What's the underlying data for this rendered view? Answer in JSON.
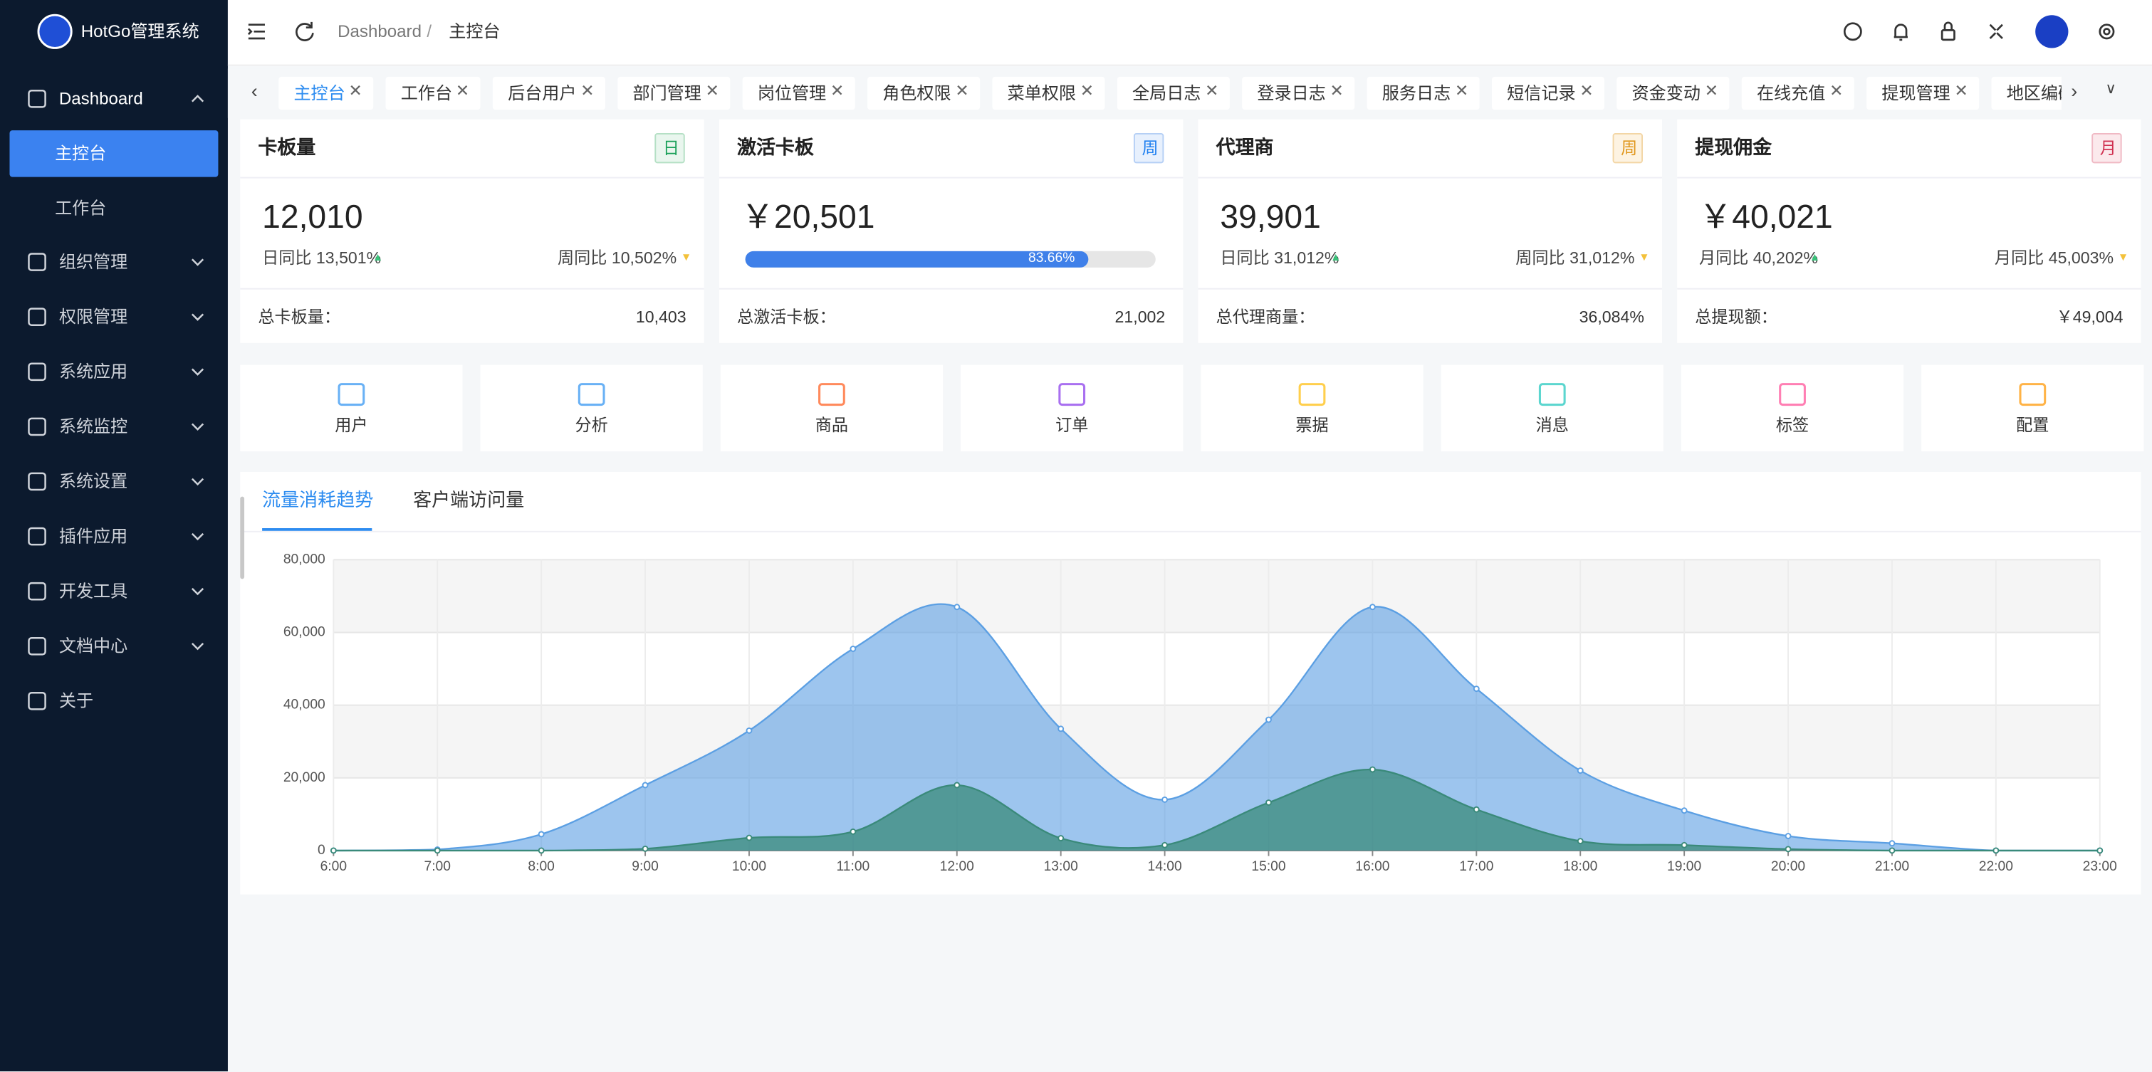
{
  "sidebar": {
    "title": "HotGo管理系统",
    "menu": [
      {
        "label": "Dashboard",
        "children": [
          "主控台",
          "工作台"
        ]
      },
      {
        "label": "组织管理"
      },
      {
        "label": "权限管理"
      },
      {
        "label": "系统应用"
      },
      {
        "label": "系统监控"
      },
      {
        "label": "系统设置"
      },
      {
        "label": "插件应用"
      },
      {
        "label": "开发工具"
      },
      {
        "label": "文档中心"
      },
      {
        "label": "关于"
      }
    ]
  },
  "header": {
    "breadcrumb": [
      "Dashboard",
      "主控台"
    ],
    "separator": "/"
  },
  "tabs": [
    "主控台",
    "工作台",
    "后台用户",
    "部门管理",
    "岗位管理",
    "角色权限",
    "菜单权限",
    "全局日志",
    "登录日志",
    "服务日志",
    "短信记录",
    "资金变动",
    "在线充值",
    "提现管理",
    "地区编码"
  ],
  "cards": [
    {
      "title": "卡板量",
      "badge": "日",
      "value": "12,010",
      "stats": [
        "日同比 13,501%",
        "周同比 10,502%"
      ],
      "footer_label": "总卡板量：",
      "footer_value": "10,403"
    },
    {
      "title": "激活卡板",
      "badge": "周",
      "value": "￥20,501",
      "progress": {
        "value": 83.66,
        "label": "83.66%"
      },
      "footer_label": "总激活卡板：",
      "footer_value": "21,002"
    },
    {
      "title": "代理商",
      "badge": "周",
      "value": "39,901",
      "stats": [
        "日同比 31,012%",
        "周同比 31,012%"
      ],
      "footer_label": "总代理商量：",
      "footer_value": "36,084%"
    },
    {
      "title": "提现佣金",
      "badge": "月",
      "value": "￥40,021",
      "stats": [
        "月同比 40,202%",
        "月同比 45,003%"
      ],
      "footer_label": "总提现额：",
      "footer_value": "￥49,004"
    }
  ],
  "shortcuts": [
    "用户",
    "分析",
    "商品",
    "订单",
    "票据",
    "消息",
    "标签",
    "配置"
  ],
  "chart_tabs": [
    "流量消耗趋势",
    "客户端访问量"
  ],
  "chart_data": {
    "type": "area",
    "x": [
      "6:00",
      "7:00",
      "8:00",
      "9:00",
      "10:00",
      "11:00",
      "12:00",
      "13:00",
      "14:00",
      "15:00",
      "16:00",
      "17:00",
      "18:00",
      "19:00",
      "20:00",
      "21:00",
      "22:00",
      "23:00"
    ],
    "series": [
      {
        "color": "#5b9fe3",
        "values": [
          0,
          300,
          4500,
          18000,
          33000,
          55500,
          67000,
          33500,
          14000,
          36000,
          67000,
          44500,
          22000,
          11000,
          4000,
          2000,
          0,
          0
        ]
      },
      {
        "color": "#3a8a7a",
        "values": [
          0,
          0,
          0,
          500,
          3500,
          5200,
          18000,
          3400,
          1500,
          13200,
          22300,
          11300,
          2600,
          1500,
          400,
          0,
          0,
          0
        ]
      }
    ],
    "ylim": [
      0,
      80000
    ],
    "yticks": [
      0,
      {
        "value": 20000,
        "label": "20,000"
      },
      {
        "value": 40000,
        "label": "40,000"
      },
      {
        "value": 60000,
        "label": "60,000"
      },
      {
        "value": 80000,
        "label": "80,000"
      }
    ],
    "grid": true
  }
}
